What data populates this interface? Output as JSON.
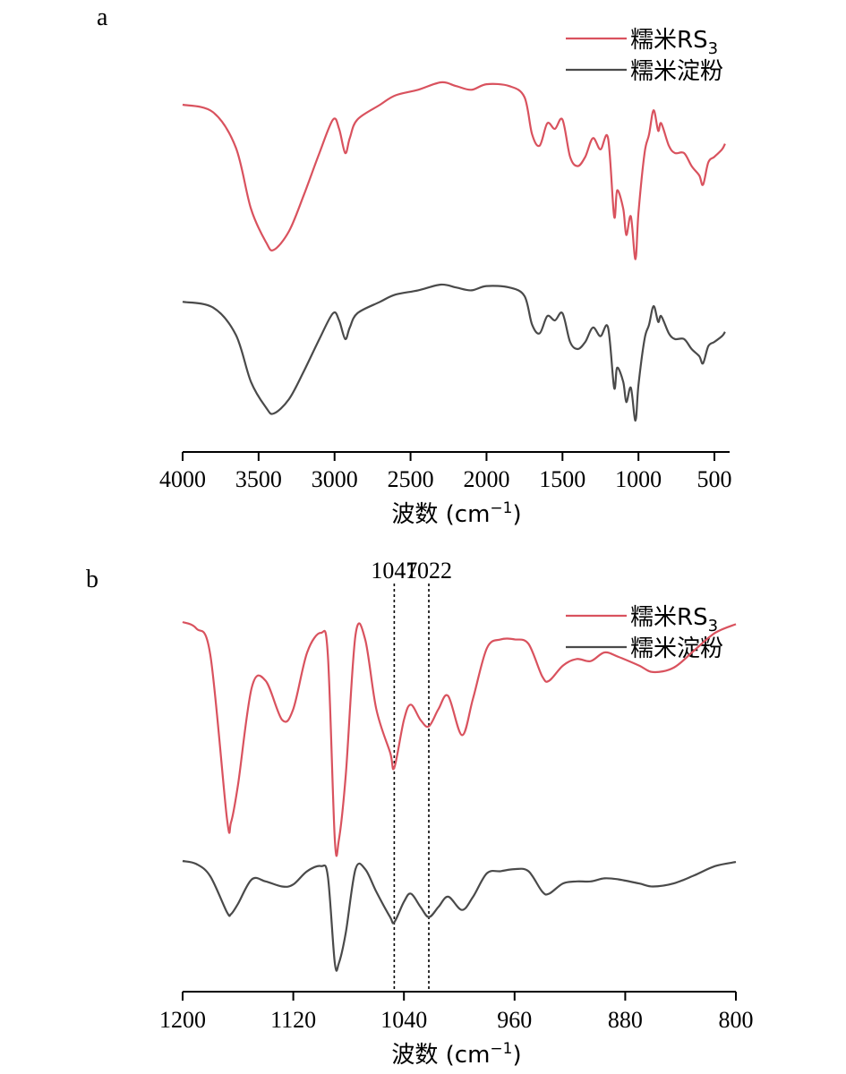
{
  "chart_data": [
    {
      "panel": "a",
      "type": "line",
      "xlabel": "波数 (cm",
      "xlabel_sup": "−1",
      "xlabel_close": ")",
      "xlim": [
        4000,
        400
      ],
      "xticks": [
        4000,
        3500,
        3000,
        2500,
        2000,
        1500,
        1000,
        500
      ],
      "legend_position": "top-right",
      "series": [
        {
          "name": "糯米RS",
          "name_sub": "3",
          "color": "#d9525e",
          "points": [
            [
              4000,
              0.12
            ],
            [
              3800,
              0.16
            ],
            [
              3650,
              0.35
            ],
            [
              3550,
              0.68
            ],
            [
              3450,
              0.86
            ],
            [
              3400,
              0.9
            ],
            [
              3300,
              0.8
            ],
            [
              3200,
              0.6
            ],
            [
              3100,
              0.38
            ],
            [
              3010,
              0.2
            ],
            [
              2970,
              0.25
            ],
            [
              2930,
              0.38
            ],
            [
              2900,
              0.3
            ],
            [
              2850,
              0.2
            ],
            [
              2700,
              0.12
            ],
            [
              2600,
              0.07
            ],
            [
              2450,
              0.04
            ],
            [
              2300,
              0.0
            ],
            [
              2200,
              0.02
            ],
            [
              2100,
              0.04
            ],
            [
              2000,
              0.01
            ],
            [
              1850,
              0.02
            ],
            [
              1750,
              0.08
            ],
            [
              1700,
              0.28
            ],
            [
              1650,
              0.34
            ],
            [
              1600,
              0.22
            ],
            [
              1550,
              0.25
            ],
            [
              1500,
              0.2
            ],
            [
              1450,
              0.4
            ],
            [
              1400,
              0.45
            ],
            [
              1350,
              0.4
            ],
            [
              1300,
              0.3
            ],
            [
              1250,
              0.36
            ],
            [
              1200,
              0.3
            ],
            [
              1160,
              0.72
            ],
            [
              1140,
              0.58
            ],
            [
              1100,
              0.68
            ],
            [
              1080,
              0.82
            ],
            [
              1050,
              0.72
            ],
            [
              1020,
              0.95
            ],
            [
              1000,
              0.7
            ],
            [
              960,
              0.38
            ],
            [
              930,
              0.28
            ],
            [
              900,
              0.15
            ],
            [
              870,
              0.26
            ],
            [
              850,
              0.22
            ],
            [
              800,
              0.34
            ],
            [
              760,
              0.38
            ],
            [
              700,
              0.38
            ],
            [
              650,
              0.45
            ],
            [
              600,
              0.5
            ],
            [
              575,
              0.55
            ],
            [
              540,
              0.43
            ],
            [
              500,
              0.4
            ],
            [
              450,
              0.36
            ],
            [
              430,
              0.33
            ]
          ]
        },
        {
          "name": "糯米淀粉",
          "color": "#4a4a4a",
          "points": [
            [
              4000,
              0.12
            ],
            [
              3800,
              0.16
            ],
            [
              3650,
              0.35
            ],
            [
              3550,
              0.68
            ],
            [
              3450,
              0.86
            ],
            [
              3400,
              0.9
            ],
            [
              3300,
              0.8
            ],
            [
              3200,
              0.6
            ],
            [
              3100,
              0.38
            ],
            [
              3010,
              0.2
            ],
            [
              2970,
              0.25
            ],
            [
              2930,
              0.38
            ],
            [
              2900,
              0.3
            ],
            [
              2850,
              0.2
            ],
            [
              2700,
              0.12
            ],
            [
              2600,
              0.07
            ],
            [
              2450,
              0.04
            ],
            [
              2300,
              0.0
            ],
            [
              2200,
              0.02
            ],
            [
              2100,
              0.04
            ],
            [
              2000,
              0.01
            ],
            [
              1850,
              0.02
            ],
            [
              1750,
              0.08
            ],
            [
              1700,
              0.28
            ],
            [
              1650,
              0.34
            ],
            [
              1600,
              0.22
            ],
            [
              1550,
              0.25
            ],
            [
              1500,
              0.2
            ],
            [
              1450,
              0.4
            ],
            [
              1400,
              0.45
            ],
            [
              1350,
              0.4
            ],
            [
              1300,
              0.3
            ],
            [
              1250,
              0.36
            ],
            [
              1200,
              0.3
            ],
            [
              1160,
              0.72
            ],
            [
              1140,
              0.58
            ],
            [
              1100,
              0.68
            ],
            [
              1080,
              0.82
            ],
            [
              1050,
              0.72
            ],
            [
              1020,
              0.95
            ],
            [
              1000,
              0.7
            ],
            [
              960,
              0.38
            ],
            [
              930,
              0.28
            ],
            [
              900,
              0.15
            ],
            [
              870,
              0.26
            ],
            [
              850,
              0.22
            ],
            [
              800,
              0.34
            ],
            [
              760,
              0.38
            ],
            [
              700,
              0.38
            ],
            [
              650,
              0.45
            ],
            [
              600,
              0.5
            ],
            [
              575,
              0.55
            ],
            [
              540,
              0.43
            ],
            [
              500,
              0.4
            ],
            [
              450,
              0.36
            ],
            [
              430,
              0.33
            ]
          ]
        }
      ]
    },
    {
      "panel": "b",
      "type": "line",
      "xlabel": "波数 (cm",
      "xlabel_sup": "−1",
      "xlabel_close": ")",
      "xlim": [
        1200,
        800
      ],
      "xticks": [
        1200,
        1120,
        1040,
        960,
        880,
        800
      ],
      "legend_position": "top-right",
      "reference_lines": [
        {
          "x": 1047,
          "label": "1047"
        },
        {
          "x": 1022,
          "label": "1022"
        }
      ],
      "series": [
        {
          "name": "糯米RS",
          "name_sub": "3",
          "color": "#d9525e",
          "points": [
            [
              1200,
              0.0
            ],
            [
              1190,
              0.03
            ],
            [
              1180,
              0.15
            ],
            [
              1168,
              0.9
            ],
            [
              1165,
              0.92
            ],
            [
              1160,
              0.75
            ],
            [
              1150,
              0.3
            ],
            [
              1140,
              0.27
            ],
            [
              1128,
              0.45
            ],
            [
              1120,
              0.4
            ],
            [
              1110,
              0.14
            ],
            [
              1100,
              0.05
            ],
            [
              1095,
              0.15
            ],
            [
              1090,
              1.0
            ],
            [
              1087,
              1.0
            ],
            [
              1082,
              0.7
            ],
            [
              1075,
              0.06
            ],
            [
              1068,
              0.08
            ],
            [
              1060,
              0.4
            ],
            [
              1050,
              0.6
            ],
            [
              1047,
              0.67
            ],
            [
              1040,
              0.45
            ],
            [
              1035,
              0.38
            ],
            [
              1028,
              0.45
            ],
            [
              1022,
              0.48
            ],
            [
              1015,
              0.4
            ],
            [
              1008,
              0.34
            ],
            [
              998,
              0.52
            ],
            [
              990,
              0.35
            ],
            [
              980,
              0.12
            ],
            [
              970,
              0.08
            ],
            [
              960,
              0.08
            ],
            [
              950,
              0.1
            ],
            [
              940,
              0.25
            ],
            [
              935,
              0.27
            ],
            [
              925,
              0.2
            ],
            [
              915,
              0.17
            ],
            [
              905,
              0.18
            ],
            [
              895,
              0.14
            ],
            [
              885,
              0.16
            ],
            [
              870,
              0.2
            ],
            [
              860,
              0.23
            ],
            [
              845,
              0.21
            ],
            [
              830,
              0.13
            ],
            [
              815,
              0.05
            ],
            [
              800,
              0.01
            ]
          ]
        },
        {
          "name": "糯米淀粉",
          "color": "#4a4a4a",
          "points": [
            [
              1200,
              0.0
            ],
            [
              1190,
              0.03
            ],
            [
              1180,
              0.15
            ],
            [
              1168,
              0.5
            ],
            [
              1165,
              0.52
            ],
            [
              1160,
              0.42
            ],
            [
              1150,
              0.18
            ],
            [
              1140,
              0.2
            ],
            [
              1128,
              0.25
            ],
            [
              1120,
              0.23
            ],
            [
              1110,
              0.1
            ],
            [
              1100,
              0.05
            ],
            [
              1095,
              0.15
            ],
            [
              1090,
              1.0
            ],
            [
              1087,
              1.0
            ],
            [
              1082,
              0.7
            ],
            [
              1075,
              0.08
            ],
            [
              1068,
              0.08
            ],
            [
              1060,
              0.3
            ],
            [
              1050,
              0.55
            ],
            [
              1047,
              0.6
            ],
            [
              1040,
              0.4
            ],
            [
              1035,
              0.32
            ],
            [
              1028,
              0.45
            ],
            [
              1022,
              0.55
            ],
            [
              1015,
              0.45
            ],
            [
              1008,
              0.35
            ],
            [
              998,
              0.48
            ],
            [
              990,
              0.35
            ],
            [
              980,
              0.12
            ],
            [
              970,
              0.1
            ],
            [
              960,
              0.08
            ],
            [
              950,
              0.1
            ],
            [
              940,
              0.3
            ],
            [
              935,
              0.32
            ],
            [
              925,
              0.22
            ],
            [
              915,
              0.2
            ],
            [
              905,
              0.2
            ],
            [
              895,
              0.17
            ],
            [
              885,
              0.18
            ],
            [
              870,
              0.22
            ],
            [
              860,
              0.25
            ],
            [
              845,
              0.22
            ],
            [
              830,
              0.14
            ],
            [
              815,
              0.05
            ],
            [
              800,
              0.01
            ]
          ]
        }
      ]
    }
  ]
}
